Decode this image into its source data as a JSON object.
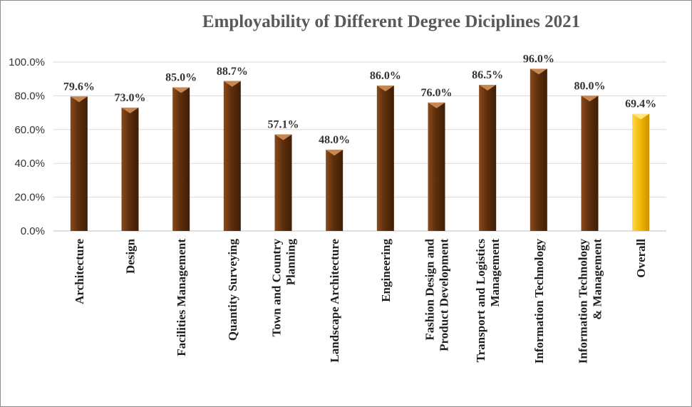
{
  "chart_data": {
    "type": "bar",
    "title": "Employability of Different Degree Diciplines 2021",
    "xlabel": "",
    "ylabel": "",
    "ylim": [
      0,
      100
    ],
    "yticks": [
      "0.0%",
      "20.0%",
      "40.0%",
      "60.0%",
      "80.0%",
      "100.0%"
    ],
    "grid": true,
    "legend": "none",
    "categories": [
      [
        "Architecture"
      ],
      [
        "Design"
      ],
      [
        "Facilities Management"
      ],
      [
        "Quantity Surveying"
      ],
      [
        "Town and Country",
        "Planning"
      ],
      [
        "Landscape Architecture"
      ],
      [
        "Engineering"
      ],
      [
        "Fashion Design and",
        "Product Development"
      ],
      [
        "Transport and Logistics",
        "Management"
      ],
      [
        "Information Technology"
      ],
      [
        "Information Technology",
        "& Management"
      ],
      [
        "Overall"
      ]
    ],
    "values": [
      79.6,
      73.0,
      85.0,
      88.7,
      57.1,
      48.0,
      86.0,
      76.0,
      86.5,
      96.0,
      80.0,
      69.4
    ],
    "value_labels": [
      "79.6%",
      "73.0%",
      "85.0%",
      "88.7%",
      "57.1%",
      "48.0%",
      "86.0%",
      "76.0%",
      "86.5%",
      "96.0%",
      "80.0%",
      "69.4%"
    ],
    "colors": {
      "bar": "#5e2f0c",
      "bar_light": "#8a4a1c",
      "bar_cap": "#c8874f",
      "highlight": "#f0b400",
      "highlight_light": "#ffd84a",
      "highlight_cap": "#ffe680"
    },
    "highlight_index": 11
  }
}
